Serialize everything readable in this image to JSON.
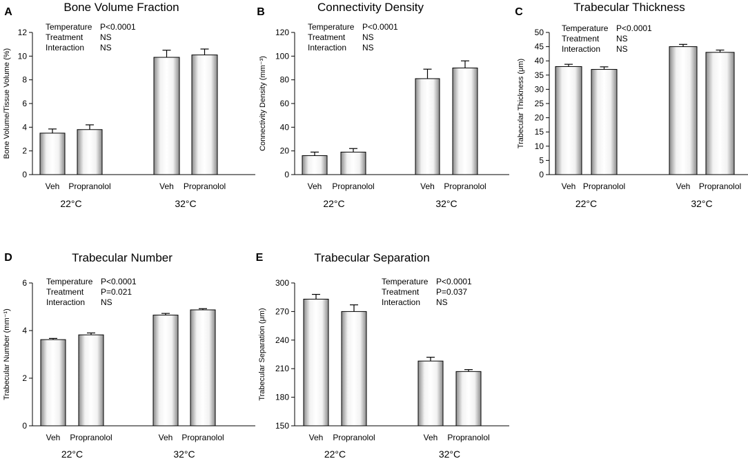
{
  "figure": {
    "bar_gradient": [
      "#8a8a8a",
      "#f2f2f2",
      "#ffffff",
      "#f2f2f2",
      "#8a8a8a"
    ],
    "bar_stroke": "#000000",
    "axis_color": "#000000"
  },
  "chart_data": [
    {
      "panel_label": "A",
      "type": "bar",
      "title": "Bone Volume Fraction",
      "ylabel": "Bone Volume/Tissue Volume (%)",
      "ylim": [
        0,
        12
      ],
      "yticks": [
        "0",
        "2",
        "4",
        "6",
        "8",
        "10",
        "12"
      ],
      "categories": [
        "Veh",
        "Propranolol",
        "Veh",
        "Propranolol"
      ],
      "groups": [
        "22°C",
        "32°C"
      ],
      "values": [
        3.5,
        3.8,
        9.9,
        10.1
      ],
      "errors": [
        0.35,
        0.4,
        0.6,
        0.5
      ],
      "stats": [
        {
          "term": "Temperature",
          "value": "P<0.0001"
        },
        {
          "term": "Treatment",
          "value": "NS"
        },
        {
          "term": "Interaction",
          "value": "NS"
        }
      ],
      "stats_position": "top-left"
    },
    {
      "panel_label": "B",
      "type": "bar",
      "title": "Connectivity Density",
      "ylabel": "Connectivity Density (mm⁻³)",
      "ylim": [
        0,
        120
      ],
      "yticks": [
        "0",
        "20",
        "40",
        "60",
        "80",
        "100",
        "120"
      ],
      "categories": [
        "Veh",
        "Propranolol",
        "Veh",
        "Propranolol"
      ],
      "groups": [
        "22°C",
        "32°C"
      ],
      "values": [
        16,
        19,
        81,
        90
      ],
      "errors": [
        3,
        3,
        8,
        6
      ],
      "stats": [
        {
          "term": "Temperature",
          "value": "P<0.0001"
        },
        {
          "term": "Treatment",
          "value": "NS"
        },
        {
          "term": "Interaction",
          "value": "NS"
        }
      ],
      "stats_position": "top-left"
    },
    {
      "panel_label": "C",
      "type": "bar",
      "title": "Trabecular Thickness",
      "ylabel": "Trabecular Thickness (μm)",
      "ylim": [
        0,
        50
      ],
      "yticks": [
        "0",
        "5",
        "10",
        "15",
        "20",
        "25",
        "30",
        "35",
        "40",
        "45",
        "50"
      ],
      "categories": [
        "Veh",
        "Propranolol",
        "Veh",
        "Propranolol"
      ],
      "groups": [
        "22°C",
        "32°C"
      ],
      "values": [
        38,
        37,
        45,
        43
      ],
      "errors": [
        0.8,
        0.9,
        0.8,
        0.8
      ],
      "stats": [
        {
          "term": "Temperature",
          "value": "P<0.0001"
        },
        {
          "term": "Treatment",
          "value": "NS"
        },
        {
          "term": "Interaction",
          "value": "NS"
        }
      ],
      "stats_position": "top-left"
    },
    {
      "panel_label": "D",
      "type": "bar",
      "title": "Trabecular Number",
      "ylabel": "Trabecular Number (mm⁻¹)",
      "ylim": [
        0,
        6
      ],
      "yticks": [
        "0",
        "2",
        "4",
        "6"
      ],
      "categories": [
        "Veh",
        "Propranolol",
        "Veh",
        "Propranolol"
      ],
      "groups": [
        "22°C",
        "32°C"
      ],
      "values": [
        3.62,
        3.82,
        4.65,
        4.87
      ],
      "errors": [
        0.05,
        0.08,
        0.07,
        0.05
      ],
      "stats": [
        {
          "term": "Temperature",
          "value": "P<0.0001"
        },
        {
          "term": "Treatment",
          "value": "P=0.021"
        },
        {
          "term": "Interaction",
          "value": "NS"
        }
      ],
      "stats_position": "top-left"
    },
    {
      "panel_label": "E",
      "type": "bar",
      "title": "Trabecular Separation",
      "ylabel": "Trabecular Separation (μm)",
      "ylim": [
        150,
        300
      ],
      "yticks": [
        "150",
        "180",
        "210",
        "240",
        "270",
        "300"
      ],
      "categories": [
        "Veh",
        "Propranolol",
        "Veh",
        "Propranolol"
      ],
      "groups": [
        "22°C",
        "32°C"
      ],
      "values": [
        283,
        270,
        218,
        207
      ],
      "errors": [
        5,
        7,
        4,
        2
      ],
      "stats": [
        {
          "term": "Temperature",
          "value": "P<0.0001"
        },
        {
          "term": "Treatment",
          "value": "P=0.037"
        },
        {
          "term": "Interaction",
          "value": "NS"
        }
      ],
      "stats_position": "top-right"
    }
  ]
}
